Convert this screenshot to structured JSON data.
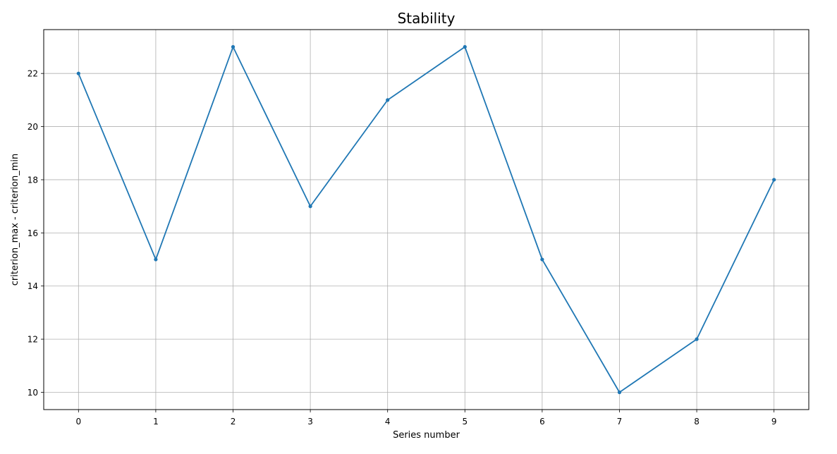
{
  "chart_data": {
    "type": "line",
    "title": "Stability",
    "xlabel": "Series number",
    "ylabel": "criterion_max - criterion_min",
    "x": [
      0,
      1,
      2,
      3,
      4,
      5,
      6,
      7,
      8,
      9
    ],
    "series": [
      {
        "values": [
          22,
          15,
          23,
          17,
          21,
          23,
          15,
          10,
          12,
          18
        ],
        "color": "#1f77b4",
        "marker": "point"
      }
    ],
    "xticks": [
      0,
      1,
      2,
      3,
      4,
      5,
      6,
      7,
      8,
      9
    ],
    "yticks": [
      10,
      12,
      14,
      16,
      18,
      20,
      22
    ],
    "xlim": [
      -0.45,
      9.45
    ],
    "ylim": [
      9.35,
      23.65
    ],
    "grid": true,
    "legend": "none"
  }
}
